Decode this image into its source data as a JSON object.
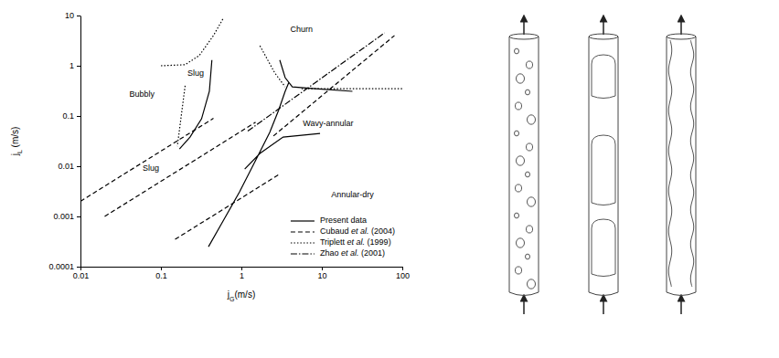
{
  "chart_data": {
    "type": "line",
    "log": true,
    "grid": false,
    "legend": "lower right",
    "x_label": "jG(m/s)",
    "y_label": "jL (m/s)",
    "xlim": [
      0.01,
      100
    ],
    "ylim": [
      0.0001,
      10
    ],
    "xticks": [
      0.01,
      0.1,
      1,
      10,
      100
    ],
    "yticks": [
      0.0001,
      0.001,
      0.01,
      0.1,
      1,
      10
    ],
    "series": [
      {
        "name": "Present data",
        "color": "#000000",
        "line_style": "solid",
        "x": [
          0.43,
          0.4,
          0.32,
          0.23,
          0.17,
          null,
          0.39,
          0.61,
          0.95,
          1.5,
          2.25,
          2.9,
          3.5,
          3.9,
          null,
          3.0,
          3.5,
          4.3,
          8.3,
          24,
          null,
          1.1,
          1.7,
          3.3,
          9.5
        ],
        "values": [
          1.3,
          0.31,
          0.088,
          0.038,
          0.022,
          null,
          0.00025,
          0.00088,
          0.0031,
          0.013,
          0.047,
          0.13,
          0.31,
          0.47,
          null,
          1.3,
          0.58,
          0.38,
          0.35,
          0.31,
          null,
          0.0088,
          0.018,
          0.038,
          0.045
        ]
      },
      {
        "name": "Cubaud et al. (2004)",
        "color": "#000000",
        "line_style": "dashed",
        "x": [
          0.01,
          0.45,
          null,
          0.02,
          1.5,
          null,
          0.15,
          3,
          null,
          2.5,
          80
        ],
        "values": [
          0.002,
          0.09,
          null,
          0.001,
          0.075,
          null,
          0.00035,
          0.007,
          null,
          0.04,
          4
        ]
      },
      {
        "name": "Triplett et al. (1999)",
        "color": "#000000",
        "line_style": "dotted",
        "x": [
          0.1,
          0.2,
          0.3,
          0.45,
          0.6,
          null,
          0.2,
          0.16,
          null,
          1.7,
          2.6,
          3.5,
          null,
          5.6,
          100
        ],
        "values": [
          1.0,
          1.05,
          1.6,
          4,
          9,
          null,
          0.4,
          0.025,
          null,
          2.5,
          0.72,
          0.38,
          null,
          0.35,
          0.35
        ]
      },
      {
        "name": "Zhao et al. (2001)",
        "color": "#000000",
        "line_style": "dashdot",
        "x": [
          1.2,
          60
        ],
        "values": [
          0.05,
          4.5
        ]
      }
    ],
    "annotations": [
      {
        "text": "Bubbly",
        "x": 0.058,
        "y": 0.27
      },
      {
        "text": "Slug",
        "x": 0.27,
        "y": 0.7
      },
      {
        "text": "Slug",
        "x": 0.075,
        "y": 0.009
      },
      {
        "text": "Churn",
        "x": 5.6,
        "y": 5.3
      },
      {
        "text": "Wavy-annular",
        "x": 12,
        "y": 0.07
      },
      {
        "text": "Annular-dry",
        "x": 24,
        "y": 0.0027
      }
    ]
  }
}
